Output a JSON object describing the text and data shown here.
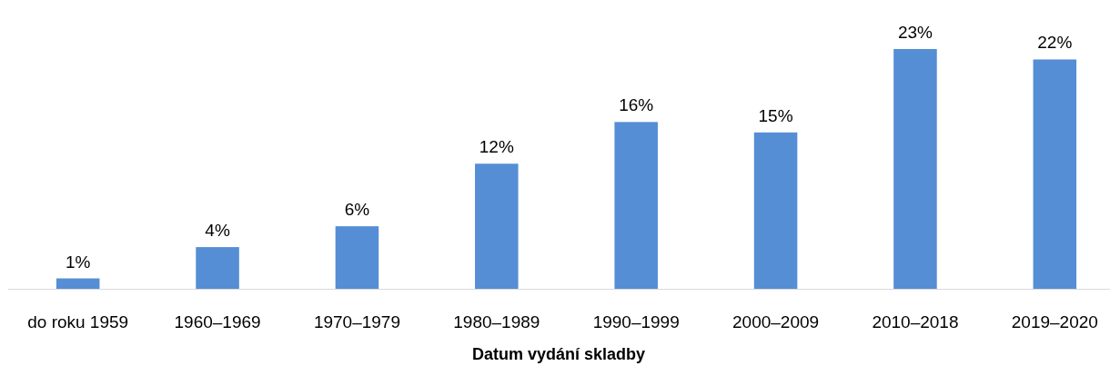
{
  "chart_data": {
    "type": "bar",
    "xlabel": "Datum vydání skladby",
    "categories": [
      "do roku 1959",
      "1960–1969",
      "1970–1979",
      "1980–1989",
      "1990–1999",
      "2000–2009",
      "2010–2018",
      "2019–2020"
    ],
    "values": [
      1,
      4,
      6,
      12,
      16,
      15,
      23,
      22
    ],
    "value_labels": [
      "1%",
      "4%",
      "6%",
      "12%",
      "16%",
      "15%",
      "23%",
      "22%"
    ],
    "color": "#558ed5"
  }
}
